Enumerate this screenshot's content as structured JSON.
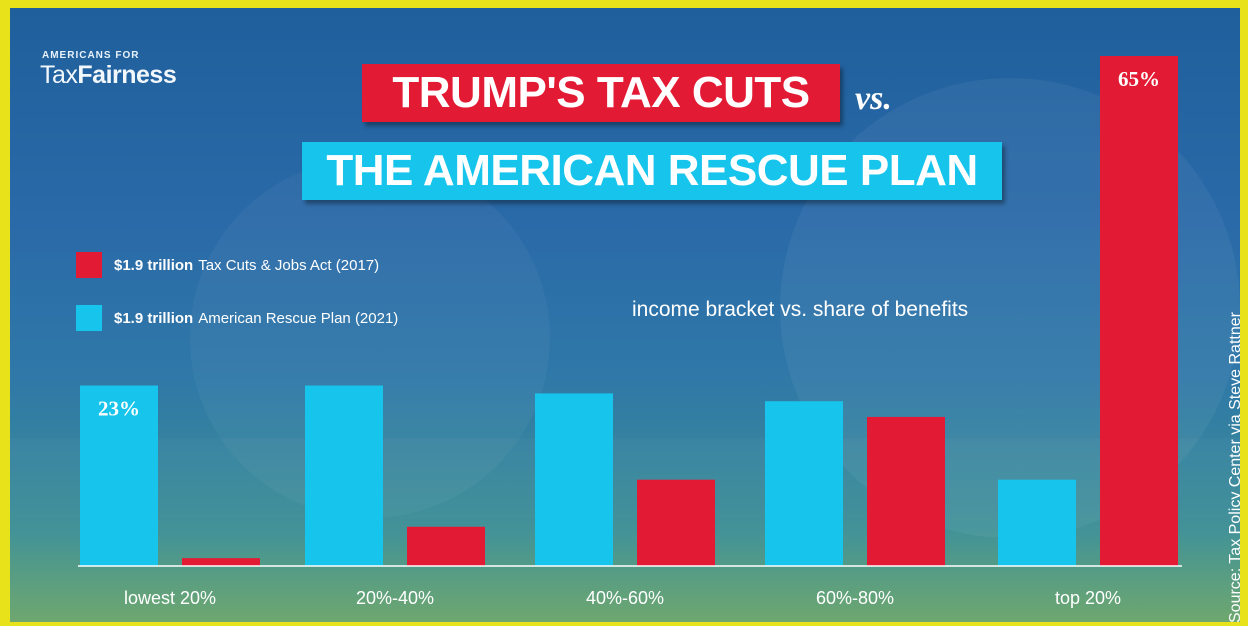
{
  "logo": {
    "small": "AMERICANS FOR",
    "word1": "Tax",
    "word2": "Fairness"
  },
  "header": {
    "title1": "TRUMP'S TAX CUTS",
    "vs": "vs.",
    "title2": "THE AMERICAN RESCUE PLAN"
  },
  "legend": [
    {
      "bold": "$1.9 trillion",
      "text": "Tax Cuts & Jobs Act (2017)",
      "color": "#e31a33"
    },
    {
      "bold": "$1.9 trillion",
      "text": "American Rescue Plan (2021)",
      "color": "#16c4ec"
    }
  ],
  "subtitle": "income bracket vs. share of benefits",
  "source": "Source: Tax Policy Center via Steve Rattner",
  "chart_data": {
    "type": "bar",
    "categories": [
      "lowest 20%",
      "20%-40%",
      "40%-60%",
      "60%-80%",
      "top 20%"
    ],
    "series": [
      {
        "name": "American Rescue Plan (2021)",
        "color": "#16c4ec",
        "values": [
          23,
          23,
          22,
          21,
          11
        ]
      },
      {
        "name": "Tax Cuts & Jobs Act (2017)",
        "color": "#e31a33",
        "values": [
          1,
          5,
          11,
          19,
          65
        ]
      }
    ],
    "data_labels": [
      {
        "series": 0,
        "index": 0,
        "text": "23%"
      },
      {
        "series": 1,
        "index": 4,
        "text": "65%"
      }
    ],
    "ylim": [
      0,
      65
    ],
    "grid": false
  }
}
